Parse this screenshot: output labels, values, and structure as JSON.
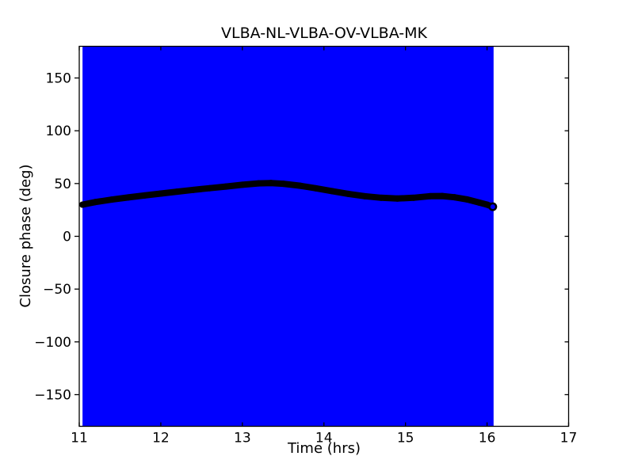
{
  "chart_data": {
    "type": "line",
    "title": "VLBA-NL-VLBA-OV-VLBA-MK",
    "xlabel": "Time (hrs)",
    "ylabel": "Closure phase (deg)",
    "xlim": [
      11,
      17
    ],
    "ylim": [
      -180,
      180
    ],
    "grid": false,
    "legend": null,
    "xticks": [
      {
        "v": 11,
        "label": "11"
      },
      {
        "v": 12,
        "label": "12"
      },
      {
        "v": 13,
        "label": "13"
      },
      {
        "v": 14,
        "label": "14"
      },
      {
        "v": 15,
        "label": "15"
      },
      {
        "v": 16,
        "label": "16"
      },
      {
        "v": 17,
        "label": "17"
      }
    ],
    "yticks": [
      {
        "v": -150,
        "label": "−150"
      },
      {
        "v": -100,
        "label": "−100"
      },
      {
        "v": -50,
        "label": "−50"
      },
      {
        "v": 0,
        "label": "0"
      },
      {
        "v": 50,
        "label": "50"
      },
      {
        "v": 100,
        "label": "100"
      },
      {
        "v": 150,
        "label": "150"
      }
    ],
    "errorbar_region": {
      "x0": 11.04,
      "x1": 16.08,
      "y0": -180,
      "y1": 180,
      "color": "#0000ff"
    },
    "series": [
      {
        "name": "closure phase",
        "color": "#000000",
        "marker": "o",
        "x": [
          11.04,
          11.2,
          11.4,
          11.6,
          11.8,
          12.0,
          12.2,
          12.4,
          12.6,
          12.8,
          13.0,
          13.2,
          13.35,
          13.5,
          13.7,
          13.9,
          14.1,
          14.3,
          14.5,
          14.7,
          14.9,
          15.1,
          15.3,
          15.45,
          15.6,
          15.75,
          15.9,
          16.0,
          16.07
        ],
        "y": [
          30.0,
          32.5,
          34.8,
          36.8,
          38.7,
          40.5,
          42.3,
          44.0,
          45.6,
          47.2,
          48.8,
          50.2,
          50.5,
          49.8,
          48.0,
          45.5,
          42.8,
          40.2,
          38.0,
          36.5,
          35.8,
          36.5,
          38.0,
          38.2,
          37.0,
          35.0,
          32.0,
          30.0,
          28.0
        ]
      }
    ],
    "last_point_marker": {
      "ring_color": "#000000",
      "core_color": "#0000ff"
    },
    "colors": {
      "background": "#ffffff",
      "axes": "#000000",
      "errorbars": "#0000ff",
      "data": "#000000"
    }
  }
}
